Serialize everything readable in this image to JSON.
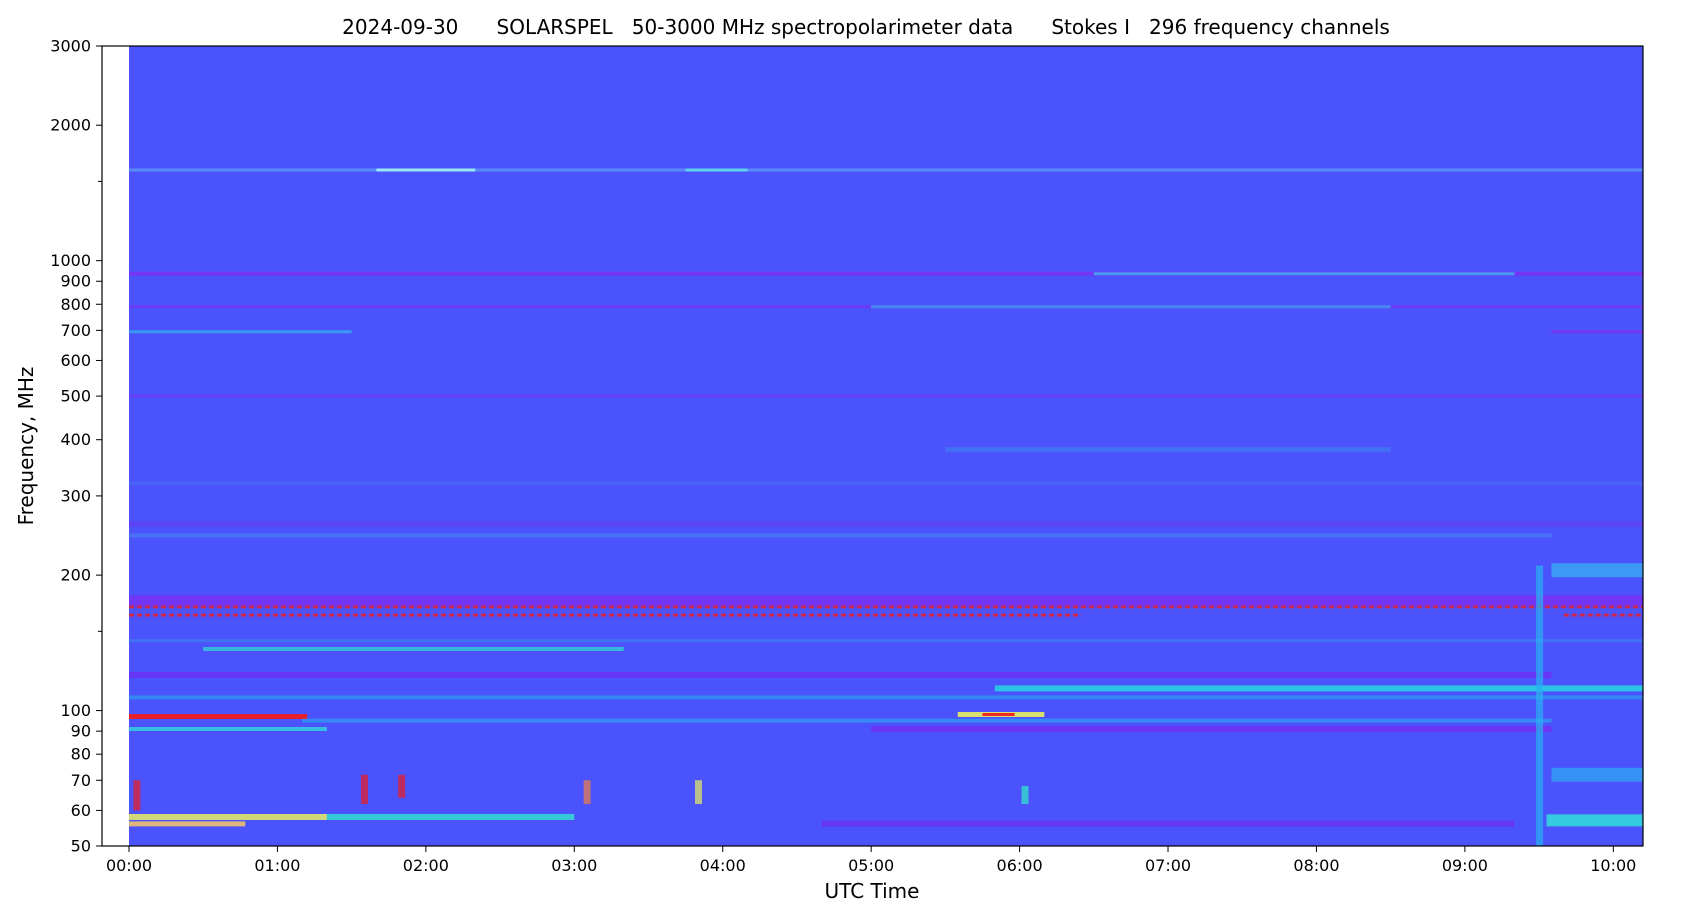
{
  "chart_data": {
    "type": "heatmap",
    "title": "2024-09-30      SOLARSPEL   50-3000 MHz spectropolarimeter data      Stokes I   296 frequency channels",
    "xlabel": "UTC Time",
    "ylabel": "Frequency, MHz",
    "x_time_range": [
      "00:00",
      "10:12"
    ],
    "y_range_mhz": [
      50,
      3000
    ],
    "y_scale": "log",
    "x_ticks": [
      {
        "time": "00:00",
        "label": "00:00"
      },
      {
        "time": "01:00",
        "label": "01:00"
      },
      {
        "time": "02:00",
        "label": "02:00"
      },
      {
        "time": "03:00",
        "label": "03:00"
      },
      {
        "time": "04:00",
        "label": "04:00"
      },
      {
        "time": "05:00",
        "label": "05:00"
      },
      {
        "time": "06:00",
        "label": "06:00"
      },
      {
        "time": "07:00",
        "label": "07:00"
      },
      {
        "time": "08:00",
        "label": "08:00"
      },
      {
        "time": "09:00",
        "label": "09:00"
      },
      {
        "time": "10:00",
        "label": "10:00"
      }
    ],
    "y_ticks": [
      {
        "mhz": 50,
        "label": "50"
      },
      {
        "mhz": 60,
        "label": "60"
      },
      {
        "mhz": 70,
        "label": "70"
      },
      {
        "mhz": 80,
        "label": "80"
      },
      {
        "mhz": 90,
        "label": "90"
      },
      {
        "mhz": 100,
        "label": "100"
      },
      {
        "mhz": 200,
        "label": "200"
      },
      {
        "mhz": 300,
        "label": "300"
      },
      {
        "mhz": 400,
        "label": "400"
      },
      {
        "mhz": 500,
        "label": "500"
      },
      {
        "mhz": 600,
        "label": "600"
      },
      {
        "mhz": 700,
        "label": "700"
      },
      {
        "mhz": 800,
        "label": "800"
      },
      {
        "mhz": 900,
        "label": "900"
      },
      {
        "mhz": 1000,
        "label": "1000"
      },
      {
        "mhz": 2000,
        "label": "2000"
      },
      {
        "mhz": 3000,
        "label": "3000"
      }
    ],
    "y_minor_ticks_mhz": [
      150,
      1500
    ],
    "colormap": [
      "#4b53fd",
      "#7b22f5",
      "#1fb6f0",
      "#30f0c8",
      "#e8f060",
      "#f08040",
      "#ee1c1c"
    ],
    "background_color": "#4b53fd",
    "grid": false,
    "features": [
      {
        "name": "band-1590",
        "f_mhz": 1590,
        "t_start": "00:00",
        "t_end": "10:12",
        "color": "#5fa8f5",
        "opacity": 0.65,
        "thickness": 3
      },
      {
        "name": "band-1590-bright-a",
        "f_mhz": 1590,
        "t_start": "01:40",
        "t_end": "02:20",
        "color": "#9ff3f0",
        "opacity": 0.9,
        "thickness": 3
      },
      {
        "name": "band-1590-bright-b",
        "f_mhz": 1590,
        "t_start": "03:45",
        "t_end": "04:10",
        "color": "#60e0f0",
        "opacity": 0.85,
        "thickness": 3
      },
      {
        "name": "band-935",
        "f_mhz": 935,
        "t_start": "00:00",
        "t_end": "10:12",
        "color": "#8030f0",
        "opacity": 0.8,
        "thickness": 4
      },
      {
        "name": "band-935-hot",
        "f_mhz": 935,
        "t_start": "06:30",
        "t_end": "09:20",
        "color": "#36c8ee",
        "opacity": 0.7,
        "thickness": 3
      },
      {
        "name": "band-790",
        "f_mhz": 790,
        "t_start": "00:00",
        "t_end": "10:12",
        "color": "#7a30f0",
        "opacity": 0.7,
        "thickness": 3
      },
      {
        "name": "band-790-hot",
        "f_mhz": 790,
        "t_start": "05:00",
        "t_end": "08:30",
        "color": "#3aa8ee",
        "opacity": 0.7,
        "thickness": 3
      },
      {
        "name": "band-695",
        "f_mhz": 695,
        "t_start": "00:00",
        "t_end": "01:30",
        "color": "#2fb8f0",
        "opacity": 0.7,
        "thickness": 3
      },
      {
        "name": "band-695-late",
        "f_mhz": 695,
        "t_start": "09:35",
        "t_end": "10:12",
        "color": "#8030f0",
        "opacity": 0.8,
        "thickness": 3
      },
      {
        "name": "band-500",
        "f_mhz": 500,
        "t_start": "00:00",
        "t_end": "10:12",
        "color": "#7a30f0",
        "opacity": 0.6,
        "thickness": 3
      },
      {
        "name": "band-380",
        "f_mhz": 380,
        "t_start": "05:30",
        "t_end": "08:30",
        "color": "#3a90f0",
        "opacity": 0.5,
        "thickness": 5
      },
      {
        "name": "band-320",
        "f_mhz": 320,
        "t_start": "00:00",
        "t_end": "10:12",
        "color": "#4a7cf5",
        "opacity": 0.45,
        "thickness": 3
      },
      {
        "name": "band-260",
        "f_mhz": 260,
        "t_start": "00:00",
        "t_end": "10:12",
        "color": "#6a3af0",
        "opacity": 0.55,
        "thickness": 6
      },
      {
        "name": "band-245",
        "f_mhz": 245,
        "t_start": "00:00",
        "t_end": "09:35",
        "color": "#4898f0",
        "opacity": 0.45,
        "thickness": 4
      },
      {
        "name": "band-205",
        "f_mhz": 205,
        "t_start": "09:35",
        "t_end": "10:12",
        "color": "#36b8f0",
        "opacity": 0.7,
        "thickness": 14
      },
      {
        "name": "band-175-violet",
        "f_mhz": 175,
        "t_start": "00:00",
        "t_end": "10:12",
        "color": "#8a22f0",
        "opacity": 0.6,
        "thickness": 12
      },
      {
        "name": "band-170-red",
        "f_mhz": 170,
        "t_start": "00:00",
        "t_end": "10:12",
        "color": "#ee1c1c",
        "opacity": 0.75,
        "thickness": 3,
        "dashed": true
      },
      {
        "name": "band-163-red",
        "f_mhz": 163,
        "t_start": "00:00",
        "t_end": "06:25",
        "color": "#ee1c1c",
        "opacity": 0.8,
        "thickness": 3,
        "dashed": true
      },
      {
        "name": "band-163-red-late",
        "f_mhz": 163,
        "t_start": "09:40",
        "t_end": "10:12",
        "color": "#ee1c1c",
        "opacity": 0.8,
        "thickness": 3,
        "dashed": true
      },
      {
        "name": "band-143",
        "f_mhz": 143,
        "t_start": "00:00",
        "t_end": "10:12",
        "color": "#3a8ef0",
        "opacity": 0.55,
        "thickness": 3
      },
      {
        "name": "band-137-arc",
        "f_mhz": 137,
        "t_start": "00:30",
        "t_end": "03:20",
        "color": "#2ee0d0",
        "opacity": 0.7,
        "thickness": 4
      },
      {
        "name": "band-120-violet",
        "f_mhz": 120,
        "t_start": "00:00",
        "t_end": "09:35",
        "color": "#7a22f0",
        "opacity": 0.6,
        "thickness": 6
      },
      {
        "name": "band-112-cyan",
        "f_mhz": 112,
        "t_start": "05:50",
        "t_end": "10:12",
        "color": "#22e0e0",
        "opacity": 0.8,
        "thickness": 6
      },
      {
        "name": "band-107",
        "f_mhz": 107,
        "t_start": "00:00",
        "t_end": "10:12",
        "color": "#2a9cf0",
        "opacity": 0.7,
        "thickness": 4
      },
      {
        "name": "band-97-red",
        "f_mhz": 97,
        "t_start": "00:00",
        "t_end": "01:12",
        "color": "#ee1c1c",
        "opacity": 0.95,
        "thickness": 5
      },
      {
        "name": "band-95-cyan",
        "f_mhz": 95,
        "t_start": "01:10",
        "t_end": "09:35",
        "color": "#2ab4f0",
        "opacity": 0.55,
        "thickness": 4
      },
      {
        "name": "band-97-burst",
        "f_mhz": 98,
        "t_start": "05:35",
        "t_end": "06:10",
        "color": "#e8f060",
        "opacity": 0.9,
        "thickness": 5
      },
      {
        "name": "band-97-burst-core",
        "f_mhz": 98,
        "t_start": "05:45",
        "t_end": "05:58",
        "color": "#ee1c1c",
        "opacity": 0.95,
        "thickness": 3
      },
      {
        "name": "band-91",
        "f_mhz": 91,
        "t_start": "00:00",
        "t_end": "01:20",
        "color": "#30e0d8",
        "opacity": 0.75,
        "thickness": 4
      },
      {
        "name": "band-91-violet",
        "f_mhz": 91,
        "t_start": "05:00",
        "t_end": "09:35",
        "color": "#8022f0",
        "opacity": 0.6,
        "thickness": 6
      },
      {
        "name": "band-72-cyan",
        "f_mhz": 72,
        "t_start": "09:35",
        "t_end": "10:12",
        "color": "#2ab4f0",
        "opacity": 0.65,
        "thickness": 14
      },
      {
        "name": "band-58-yellow",
        "f_mhz": 58,
        "t_start": "00:00",
        "t_end": "01:20",
        "color": "#e8f060",
        "opacity": 0.85,
        "thickness": 6
      },
      {
        "name": "band-58-cyan",
        "f_mhz": 58,
        "t_start": "01:20",
        "t_end": "03:00",
        "color": "#30f0c8",
        "opacity": 0.75,
        "thickness": 6
      },
      {
        "name": "band-56-yellow",
        "f_mhz": 56,
        "t_start": "00:00",
        "t_end": "00:47",
        "color": "#f0c070",
        "opacity": 0.9,
        "thickness": 5
      },
      {
        "name": "band-57-late",
        "f_mhz": 57,
        "t_start": "09:33",
        "t_end": "10:12",
        "color": "#30e8d8",
        "opacity": 0.8,
        "thickness": 12
      },
      {
        "name": "band-56-violet",
        "f_mhz": 56,
        "t_start": "04:40",
        "t_end": "09:20",
        "color": "#7a22f0",
        "opacity": 0.55,
        "thickness": 6
      }
    ],
    "bursts": [
      {
        "t": "00:03",
        "f_low": 60,
        "f_high": 70,
        "color": "#ee1c1c"
      },
      {
        "t": "01:35",
        "f_low": 62,
        "f_high": 72,
        "color": "#ee1c1c"
      },
      {
        "t": "01:50",
        "f_low": 64,
        "f_high": 72,
        "color": "#ee1c1c"
      },
      {
        "t": "03:05",
        "f_low": 62,
        "f_high": 70,
        "color": "#f08040"
      },
      {
        "t": "03:50",
        "f_low": 62,
        "f_high": 70,
        "color": "#e8f060"
      },
      {
        "t": "06:02",
        "f_low": 62,
        "f_high": 68,
        "color": "#30f0c8"
      },
      {
        "t": "09:30",
        "f_low": 50,
        "f_high": 210,
        "color": "#2ab4f0"
      }
    ]
  }
}
